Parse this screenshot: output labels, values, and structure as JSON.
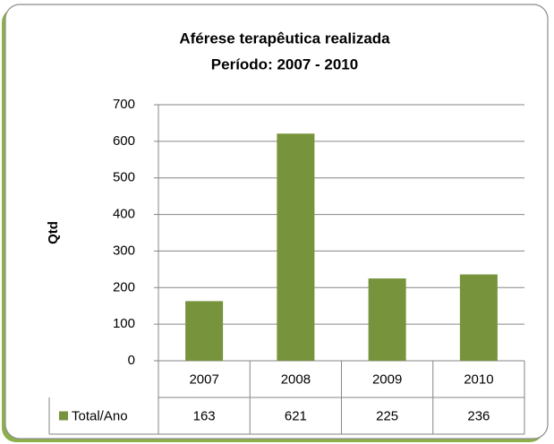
{
  "chart_data": {
    "type": "bar",
    "title": "Aférese terapêutica realizada",
    "subtitle": "Período: 2007 - 2010",
    "y_label": "Qtd",
    "categories": [
      "2007",
      "2008",
      "2009",
      "2010"
    ],
    "series": [
      {
        "name": "Total/Ano",
        "color": "#77933c",
        "values": [
          163,
          621,
          225,
          236
        ]
      }
    ],
    "ylim": [
      0,
      700
    ],
    "yticks": [
      0,
      100,
      200,
      300,
      400,
      500,
      600,
      700
    ],
    "grid": true,
    "data_table": true
  }
}
